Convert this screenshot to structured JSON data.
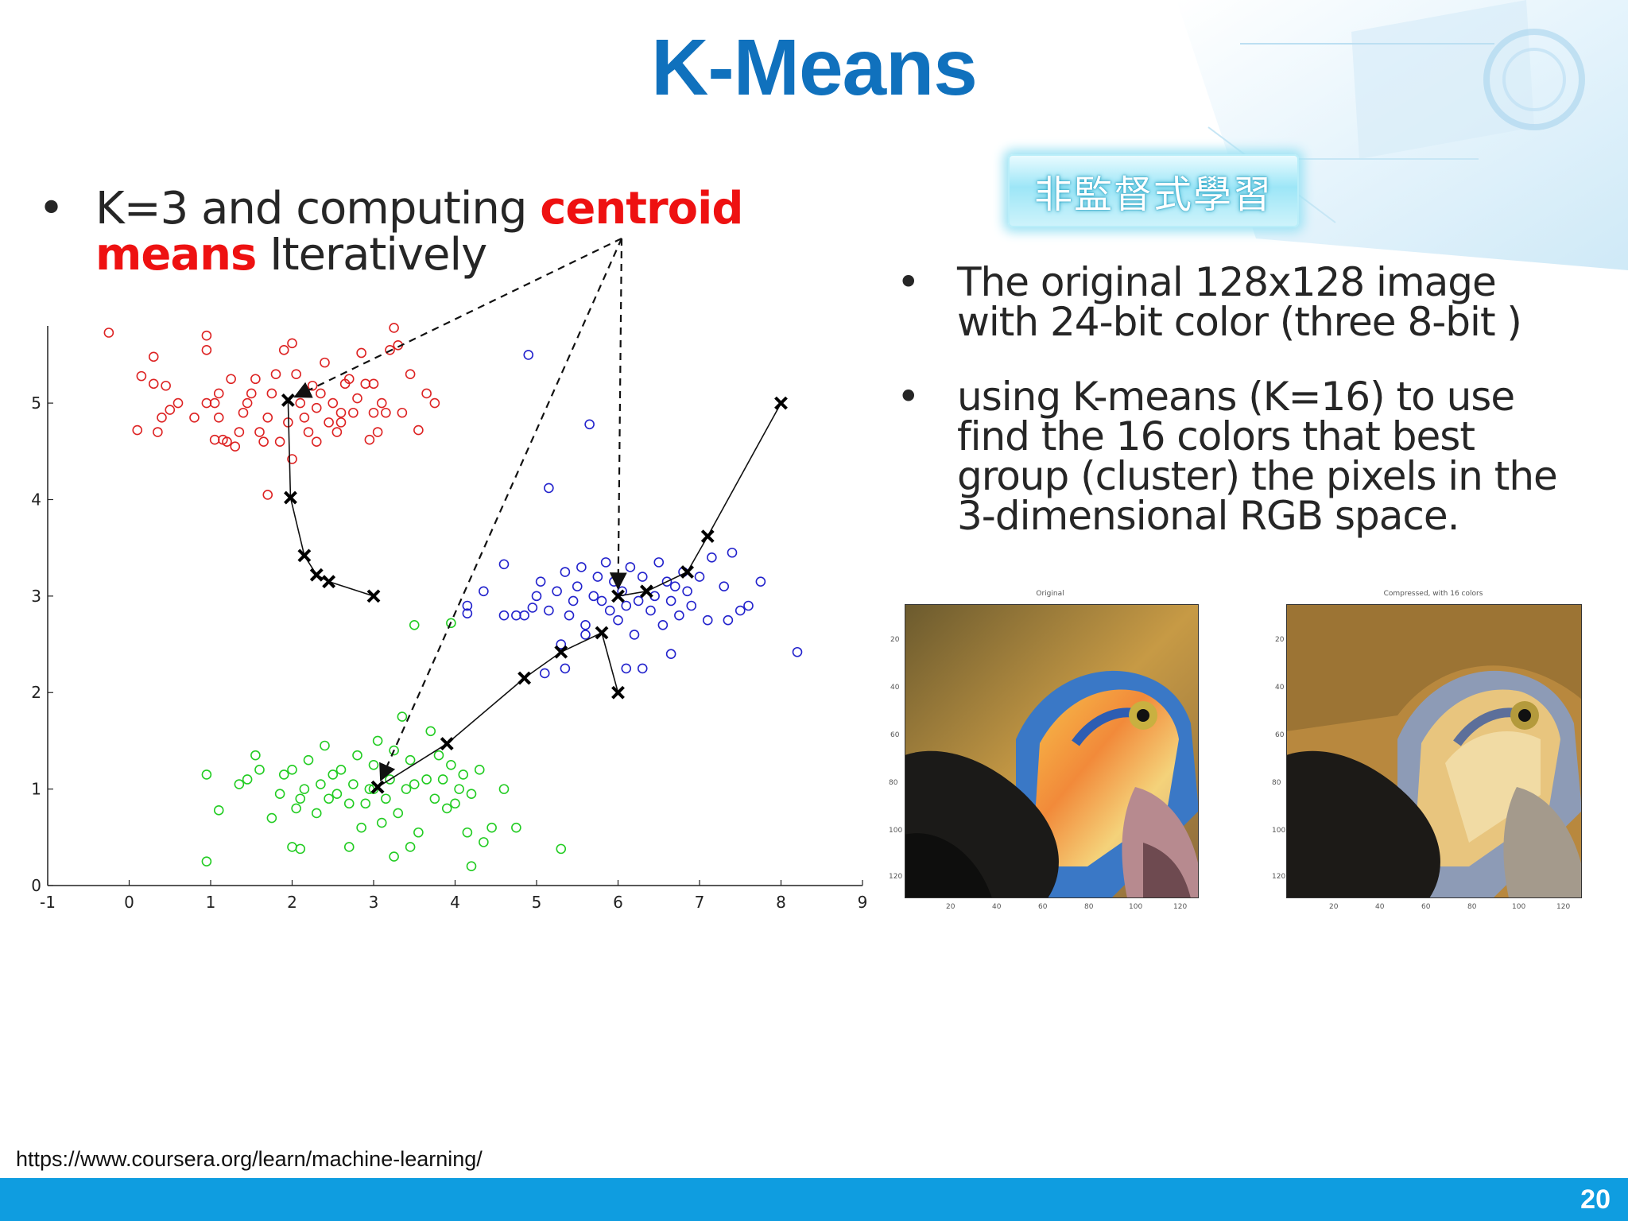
{
  "slide": {
    "title": "K-Means",
    "badge": "非監督式學習",
    "left_bullet": {
      "text_before": "K=3 and computing ",
      "highlight": "centroid means",
      "text_after": " Iteratively"
    },
    "right_bullets": [
      {
        "lines": [
          "The original 128x128 image",
          "with 24-bit color (three 8-bit )"
        ]
      },
      {
        "lines": [
          "using K-means (K=16) to use",
          "find the 16 colors that best",
          "group (cluster) the pixels in the",
          "3-dimensional RGB space."
        ]
      }
    ],
    "source_url": "https://www.coursera.org/learn/machine-learning/",
    "page_number": "20",
    "colors": {
      "title": "#1071bd",
      "highlight": "#ee1111",
      "footer": "#0f9de0"
    }
  },
  "chart_data": [
    {
      "type": "scatter",
      "xlim": [
        -1,
        9
      ],
      "ylim": [
        0,
        5.8
      ],
      "xticks": [
        "-1",
        "0",
        "1",
        "2",
        "3",
        "4",
        "5",
        "6",
        "7",
        "8",
        "9"
      ],
      "yticks": [
        "0",
        "1",
        "2",
        "3",
        "4",
        "5"
      ],
      "grid": false,
      "series": [
        {
          "color": "#dd2222",
          "marker": "circle-open",
          "points": [
            [
              -0.25,
              5.73
            ],
            [
              0.15,
              5.28
            ],
            [
              0.3,
              5.2
            ],
            [
              0.3,
              5.48
            ],
            [
              0.45,
              5.18
            ],
            [
              0.6,
              5.0
            ],
            [
              0.5,
              4.93
            ],
            [
              0.4,
              4.85
            ],
            [
              0.1,
              4.72
            ],
            [
              0.35,
              4.7
            ],
            [
              0.8,
              4.85
            ],
            [
              0.95,
              5.0
            ],
            [
              1.05,
              5.0
            ],
            [
              1.1,
              4.85
            ],
            [
              1.15,
              4.62
            ],
            [
              1.05,
              4.62
            ],
            [
              0.95,
              5.55
            ],
            [
              0.95,
              5.7
            ],
            [
              1.2,
              4.6
            ],
            [
              1.3,
              4.55
            ],
            [
              1.35,
              4.7
            ],
            [
              1.4,
              4.9
            ],
            [
              1.45,
              5.0
            ],
            [
              1.5,
              5.1
            ],
            [
              1.55,
              5.25
            ],
            [
              1.6,
              4.7
            ],
            [
              1.65,
              4.6
            ],
            [
              1.7,
              4.85
            ],
            [
              1.75,
              5.1
            ],
            [
              1.8,
              5.3
            ],
            [
              1.85,
              4.6
            ],
            [
              1.9,
              5.55
            ],
            [
              2.0,
              5.62
            ],
            [
              2.05,
              5.3
            ],
            [
              2.1,
              5.0
            ],
            [
              2.15,
              4.85
            ],
            [
              2.2,
              4.7
            ],
            [
              2.25,
              5.18
            ],
            [
              2.3,
              4.95
            ],
            [
              2.35,
              5.1
            ],
            [
              2.4,
              5.42
            ],
            [
              2.45,
              4.8
            ],
            [
              2.5,
              5.0
            ],
            [
              2.55,
              4.7
            ],
            [
              2.6,
              4.9
            ],
            [
              2.65,
              5.2
            ],
            [
              2.7,
              5.25
            ],
            [
              2.75,
              4.9
            ],
            [
              2.8,
              5.05
            ],
            [
              2.85,
              5.52
            ],
            [
              2.9,
              5.2
            ],
            [
              2.95,
              4.62
            ],
            [
              3.0,
              4.9
            ],
            [
              3.05,
              4.7
            ],
            [
              3.1,
              5.0
            ],
            [
              3.15,
              4.9
            ],
            [
              3.2,
              5.55
            ],
            [
              3.25,
              5.78
            ],
            [
              3.3,
              5.6
            ],
            [
              3.35,
              4.9
            ],
            [
              3.45,
              5.3
            ],
            [
              3.65,
              5.1
            ],
            [
              3.75,
              5.0
            ],
            [
              3.55,
              4.72
            ],
            [
              2.0,
              4.42
            ],
            [
              1.7,
              4.05
            ],
            [
              1.25,
              5.25
            ],
            [
              1.1,
              5.1
            ],
            [
              2.3,
              4.6
            ],
            [
              1.95,
              4.8
            ],
            [
              2.6,
              4.8
            ],
            [
              3.0,
              5.2
            ]
          ]
        },
        {
          "color": "#2222cc",
          "marker": "circle-open",
          "points": [
            [
              4.9,
              5.5
            ],
            [
              5.65,
              4.78
            ],
            [
              5.15,
              4.12
            ],
            [
              4.6,
              3.33
            ],
            [
              4.35,
              3.05
            ],
            [
              4.15,
              2.9
            ],
            [
              4.15,
              2.82
            ],
            [
              4.6,
              2.8
            ],
            [
              4.75,
              2.8
            ],
            [
              4.85,
              2.8
            ],
            [
              4.95,
              2.88
            ],
            [
              5.0,
              3.0
            ],
            [
              5.05,
              3.15
            ],
            [
              5.15,
              2.85
            ],
            [
              5.25,
              3.05
            ],
            [
              5.35,
              3.25
            ],
            [
              5.45,
              2.95
            ],
            [
              5.5,
              3.1
            ],
            [
              5.55,
              3.3
            ],
            [
              5.6,
              2.7
            ],
            [
              5.7,
              3.0
            ],
            [
              5.75,
              3.2
            ],
            [
              5.8,
              2.95
            ],
            [
              5.85,
              3.35
            ],
            [
              5.9,
              2.85
            ],
            [
              5.95,
              3.15
            ],
            [
              6.0,
              2.75
            ],
            [
              6.05,
              3.05
            ],
            [
              6.1,
              2.9
            ],
            [
              6.15,
              3.3
            ],
            [
              6.2,
              2.6
            ],
            [
              6.25,
              2.95
            ],
            [
              6.3,
              3.2
            ],
            [
              6.4,
              2.85
            ],
            [
              6.45,
              3.0
            ],
            [
              6.5,
              3.35
            ],
            [
              6.55,
              2.7
            ],
            [
              6.6,
              3.15
            ],
            [
              6.65,
              2.95
            ],
            [
              6.7,
              3.1
            ],
            [
              6.75,
              2.8
            ],
            [
              6.8,
              3.25
            ],
            [
              6.85,
              3.05
            ],
            [
              6.9,
              2.9
            ],
            [
              7.0,
              3.2
            ],
            [
              7.1,
              2.75
            ],
            [
              7.15,
              3.4
            ],
            [
              7.3,
              3.1
            ],
            [
              7.4,
              3.45
            ],
            [
              7.5,
              2.85
            ],
            [
              7.6,
              2.9
            ],
            [
              7.75,
              3.15
            ],
            [
              7.35,
              2.75
            ],
            [
              6.65,
              2.4
            ],
            [
              6.1,
              2.25
            ],
            [
              5.35,
              2.25
            ],
            [
              5.1,
              2.2
            ],
            [
              5.3,
              2.5
            ],
            [
              5.6,
              2.6
            ],
            [
              5.4,
              2.8
            ],
            [
              8.2,
              2.42
            ],
            [
              6.3,
              2.25
            ]
          ]
        },
        {
          "color": "#22cc22",
          "marker": "circle-open",
          "points": [
            [
              0.95,
              1.15
            ],
            [
              1.1,
              0.78
            ],
            [
              0.95,
              0.25
            ],
            [
              1.35,
              1.05
            ],
            [
              1.45,
              1.1
            ],
            [
              1.55,
              1.35
            ],
            [
              1.6,
              1.2
            ],
            [
              1.75,
              0.7
            ],
            [
              1.85,
              0.95
            ],
            [
              1.9,
              1.15
            ],
            [
              2.0,
              1.2
            ],
            [
              2.05,
              0.8
            ],
            [
              2.1,
              0.9
            ],
            [
              2.15,
              1.0
            ],
            [
              2.2,
              1.3
            ],
            [
              2.3,
              0.75
            ],
            [
              2.35,
              1.05
            ],
            [
              2.4,
              1.45
            ],
            [
              2.45,
              0.9
            ],
            [
              2.5,
              1.15
            ],
            [
              2.55,
              0.95
            ],
            [
              2.6,
              1.2
            ],
            [
              2.7,
              0.85
            ],
            [
              2.75,
              1.05
            ],
            [
              2.8,
              1.35
            ],
            [
              2.85,
              0.6
            ],
            [
              2.9,
              0.85
            ],
            [
              2.95,
              1.0
            ],
            [
              3.0,
              1.25
            ],
            [
              3.05,
              1.5
            ],
            [
              3.1,
              0.65
            ],
            [
              3.15,
              0.9
            ],
            [
              3.2,
              1.1
            ],
            [
              3.25,
              1.4
            ],
            [
              3.3,
              0.75
            ],
            [
              3.35,
              1.75
            ],
            [
              3.4,
              1.0
            ],
            [
              3.45,
              1.3
            ],
            [
              3.5,
              1.05
            ],
            [
              3.55,
              0.55
            ],
            [
              3.65,
              1.1
            ],
            [
              3.7,
              1.6
            ],
            [
              3.75,
              0.9
            ],
            [
              3.8,
              1.35
            ],
            [
              3.85,
              1.1
            ],
            [
              3.9,
              0.8
            ],
            [
              3.95,
              1.25
            ],
            [
              4.0,
              0.85
            ],
            [
              4.05,
              1.0
            ],
            [
              4.1,
              1.15
            ],
            [
              4.15,
              0.55
            ],
            [
              4.2,
              0.95
            ],
            [
              4.3,
              1.2
            ],
            [
              4.35,
              0.45
            ],
            [
              4.45,
              0.6
            ],
            [
              4.6,
              1.0
            ],
            [
              4.75,
              0.6
            ],
            [
              5.3,
              0.38
            ],
            [
              4.2,
              0.2
            ],
            [
              2.0,
              0.4
            ],
            [
              2.1,
              0.38
            ],
            [
              2.7,
              0.4
            ],
            [
              3.25,
              0.3
            ],
            [
              3.45,
              0.4
            ],
            [
              3.0,
              1.0
            ],
            [
              3.5,
              2.7
            ],
            [
              3.95,
              2.72
            ]
          ]
        }
      ],
      "centroid_paths": [
        [
          [
            3.0,
            3.0
          ],
          [
            2.45,
            3.15
          ],
          [
            2.3,
            3.22
          ],
          [
            2.15,
            3.42
          ],
          [
            1.98,
            4.02
          ],
          [
            1.95,
            5.03
          ]
        ],
        [
          [
            6.0,
            2.0
          ],
          [
            5.8,
            2.62
          ],
          [
            5.3,
            2.42
          ],
          [
            4.85,
            2.15
          ],
          [
            3.9,
            1.47
          ],
          [
            3.05,
            1.02
          ]
        ],
        [
          [
            8.0,
            5.0
          ],
          [
            7.1,
            3.62
          ],
          [
            6.85,
            3.25
          ],
          [
            6.35,
            3.05
          ],
          [
            6.0,
            3.0
          ]
        ]
      ],
      "centroid_marker": "x-black"
    },
    {
      "type": "image",
      "title": "Original",
      "yticks": [
        "20",
        "40",
        "60",
        "80",
        "100",
        "120"
      ],
      "xticks": [
        "20",
        "40",
        "60",
        "80",
        "100",
        "120"
      ]
    },
    {
      "type": "image",
      "title": "Compressed, with 16 colors",
      "yticks": [
        "20",
        "40",
        "60",
        "80",
        "100",
        "120"
      ],
      "xticks": [
        "20",
        "40",
        "60",
        "80",
        "100",
        "120"
      ]
    }
  ]
}
